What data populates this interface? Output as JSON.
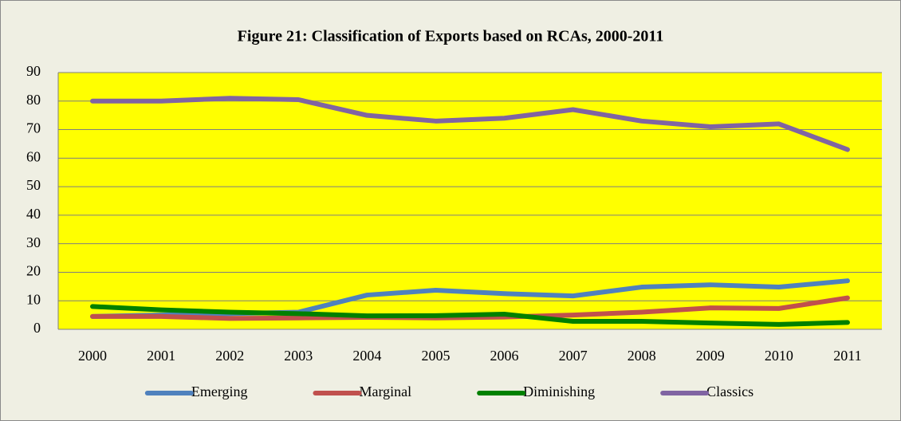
{
  "chart_data": {
    "type": "line",
    "title": "Figure 21:  Classification of Exports based on RCAs, 2000-2011",
    "categories": [
      "2000",
      "2001",
      "2002",
      "2003",
      "2004",
      "2005",
      "2006",
      "2007",
      "2008",
      "2009",
      "2010",
      "2011"
    ],
    "series": [
      {
        "name": "Emerging",
        "color": "#4f81bd",
        "values": [
          4.5,
          5,
          5.5,
          6,
          12,
          13.7,
          12.5,
          11.7,
          14.8,
          15.6,
          14.8,
          17
        ]
      },
      {
        "name": "Marginal",
        "color": "#c0504d",
        "values": [
          4.5,
          4.5,
          3.8,
          4,
          4.2,
          4,
          4.3,
          5,
          6,
          7.5,
          7.3,
          11
        ]
      },
      {
        "name": "Diminishing",
        "color": "#008000",
        "values": [
          8,
          6.8,
          6,
          5.5,
          4.7,
          4.8,
          5.3,
          2.8,
          2.8,
          2.2,
          1.7,
          2.4
        ]
      },
      {
        "name": "Classics",
        "color": "#8064a2",
        "values": [
          80,
          80,
          81,
          80.5,
          75,
          73,
          74,
          77,
          73,
          71,
          72,
          63
        ]
      }
    ],
    "ylim": [
      0,
      90
    ],
    "yticks": [
      0,
      10,
      20,
      30,
      40,
      50,
      60,
      70,
      80,
      90
    ],
    "grid": true,
    "plot_background": "#ffff00",
    "legend": "bottom"
  }
}
